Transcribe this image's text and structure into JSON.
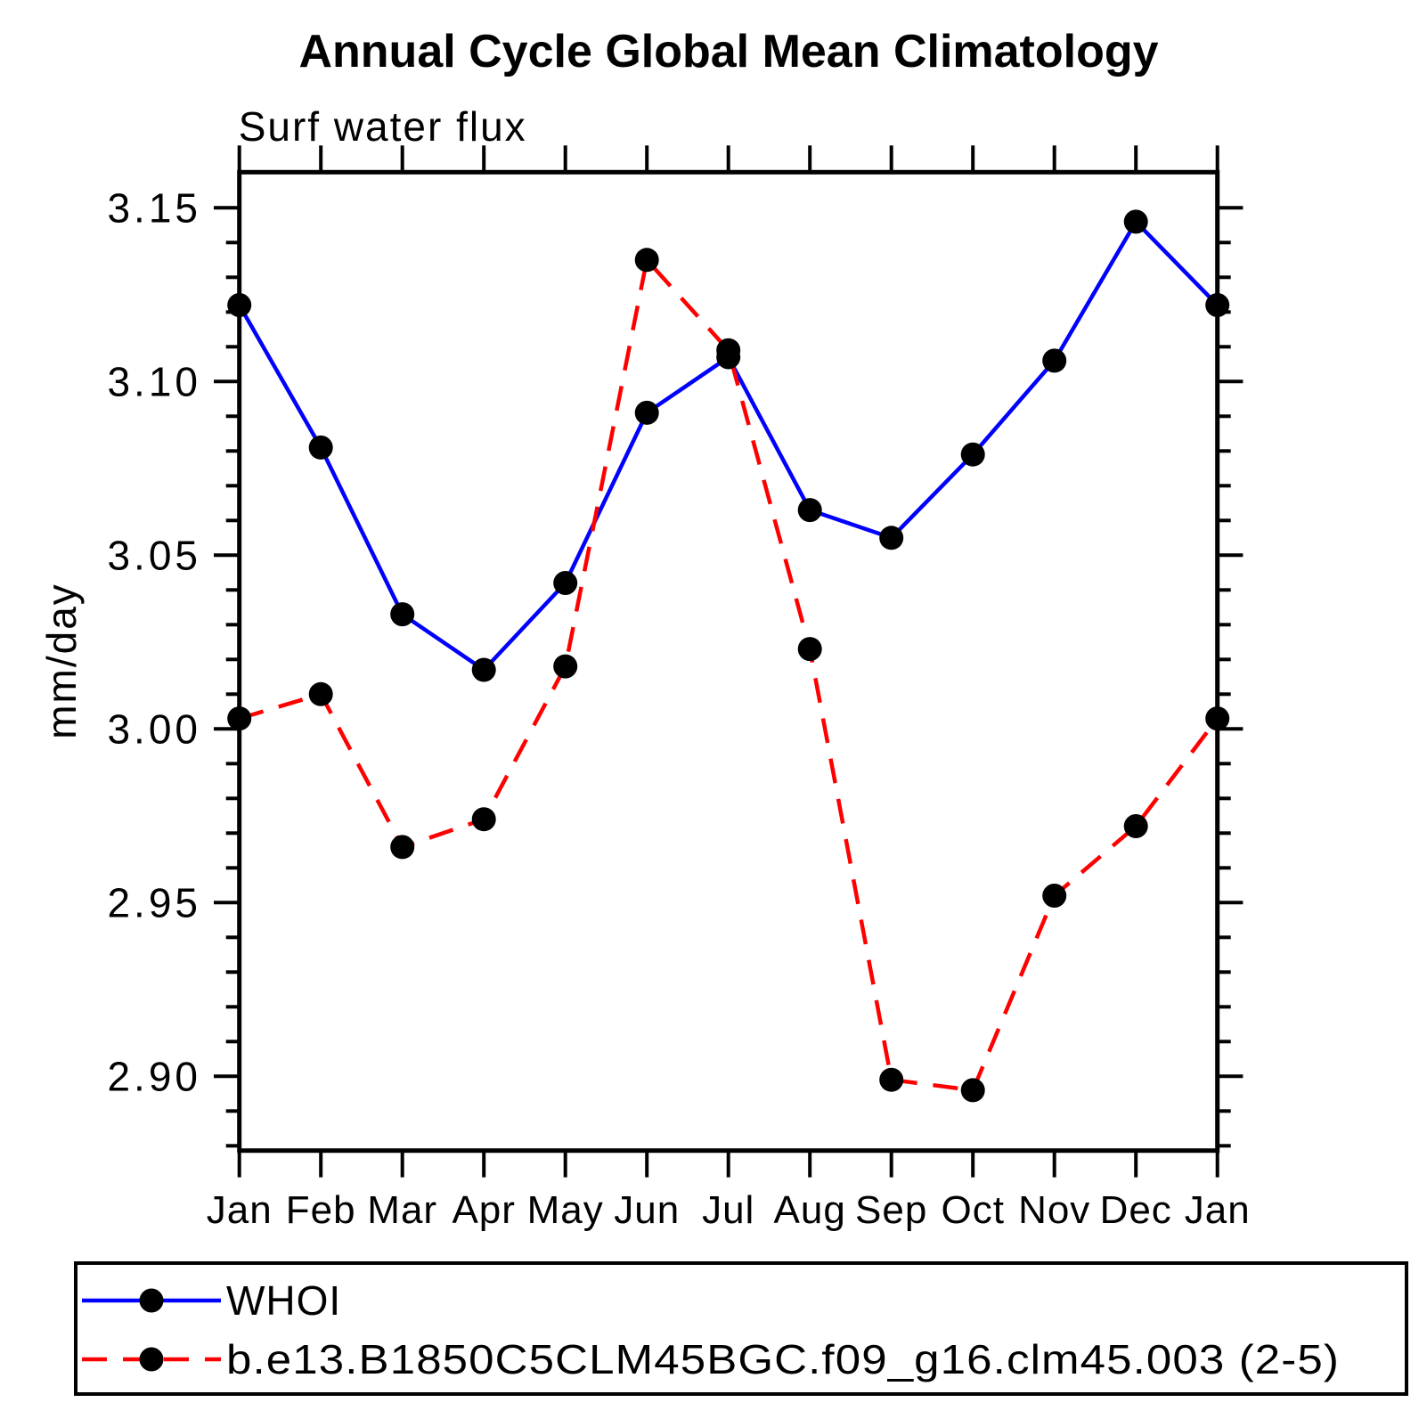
{
  "page": {
    "background": "#ffffff"
  },
  "chart_data": {
    "type": "line",
    "title": "Annual Cycle Global Mean Climatology",
    "subtitle": "Surf water flux",
    "ylabel": "mm/day",
    "xlabel": "",
    "categories": [
      "Jan",
      "Feb",
      "Mar",
      "Apr",
      "May",
      "Jun",
      "Jul",
      "Aug",
      "Sep",
      "Oct",
      "Nov",
      "Dec",
      "Jan"
    ],
    "ylim": [
      2.879,
      3.16
    ],
    "yticks": {
      "major_values": [
        2.9,
        2.95,
        3.0,
        3.05,
        3.1,
        3.15
      ],
      "major_labels": [
        "2.90",
        "2.95",
        "3.00",
        "3.05",
        "3.10",
        "3.15"
      ],
      "minor_step": 0.01
    },
    "grid": false,
    "series": [
      {
        "name": "WHOI",
        "color": "#0000ff",
        "style": "solid",
        "marker": "circle",
        "marker_color": "#000000",
        "values": [
          3.122,
          3.081,
          3.033,
          3.017,
          3.042,
          3.091,
          3.107,
          3.063,
          3.055,
          3.079,
          3.106,
          3.146,
          3.122
        ]
      },
      {
        "name": "b.e13.B1850C5CLM45BGC.f09_g16.clm45.003 (2-5)",
        "color": "#ff0000",
        "style": "dashed",
        "marker": "circle",
        "marker_color": "#000000",
        "values": [
          3.003,
          3.01,
          2.966,
          2.974,
          3.018,
          3.135,
          3.109,
          3.023,
          2.899,
          2.896,
          2.952,
          2.972,
          3.003
        ]
      }
    ],
    "legend": {
      "position": "bottom-box",
      "entries": [
        "WHOI",
        "b.e13.B1850C5CLM45BGC.f09_g16.clm45.003 (2-5)"
      ]
    }
  },
  "colors": {
    "series1": "#0000ff",
    "series2": "#ff0000",
    "marker": "#000000",
    "axis": "#000000",
    "background": "#ffffff"
  }
}
